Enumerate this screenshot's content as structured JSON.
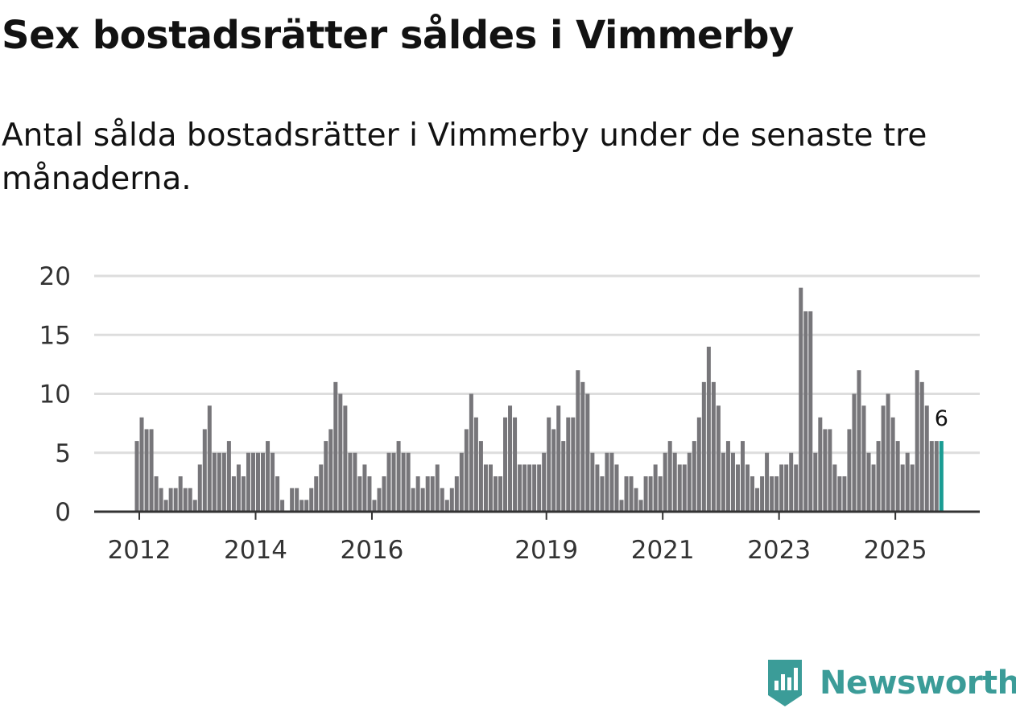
{
  "title": "Sex bostadsrätter såldes i Vimmerby",
  "subtitle": "Antal sålda bostadsrätter i Vimmerby under de senaste tre månaderna.",
  "brand": {
    "name": "Newsworthy",
    "icon": "newsworthy-logo-icon",
    "color": "#3b9c98"
  },
  "colors": {
    "bar": "#77767a",
    "highlight": "#1a9c93",
    "grid": "#dddddd",
    "axis": "#333333"
  },
  "chart_data": {
    "type": "bar",
    "title": "Sex bostadsrätter såldes i Vimmerby",
    "xlabel": "",
    "ylabel": "",
    "ylim": [
      0,
      20
    ],
    "yticks": [
      0,
      5,
      10,
      15,
      20
    ],
    "grid": true,
    "start": "2011-12",
    "frequency": "monthly",
    "xticks": [
      {
        "label": "2012",
        "index": 1
      },
      {
        "label": "2014",
        "index": 25
      },
      {
        "label": "2016",
        "index": 49
      },
      {
        "label": "2019",
        "index": 85
      },
      {
        "label": "2021",
        "index": 109
      },
      {
        "label": "2023",
        "index": 133
      },
      {
        "label": "2025",
        "index": 157
      }
    ],
    "values": [
      6,
      8,
      7,
      7,
      3,
      2,
      1,
      2,
      2,
      3,
      2,
      2,
      1,
      4,
      7,
      9,
      5,
      5,
      5,
      6,
      3,
      4,
      3,
      5,
      5,
      5,
      5,
      6,
      5,
      3,
      1,
      0,
      2,
      2,
      1,
      1,
      2,
      3,
      4,
      6,
      7,
      11,
      10,
      9,
      5,
      5,
      3,
      4,
      3,
      1,
      2,
      3,
      5,
      5,
      6,
      5,
      5,
      2,
      3,
      2,
      3,
      3,
      4,
      2,
      1,
      2,
      3,
      5,
      7,
      10,
      8,
      6,
      4,
      4,
      3,
      3,
      8,
      9,
      8,
      4,
      4,
      4,
      4,
      4,
      5,
      8,
      7,
      9,
      6,
      8,
      8,
      12,
      11,
      10,
      5,
      4,
      3,
      5,
      5,
      4,
      1,
      3,
      3,
      2,
      1,
      3,
      3,
      4,
      3,
      5,
      6,
      5,
      4,
      4,
      5,
      6,
      8,
      11,
      14,
      11,
      9,
      5,
      6,
      5,
      4,
      6,
      4,
      3,
      2,
      3,
      5,
      3,
      3,
      4,
      4,
      5,
      4,
      19,
      17,
      17,
      5,
      8,
      7,
      7,
      4,
      3,
      3,
      7,
      10,
      12,
      9,
      5,
      4,
      6,
      9,
      10,
      8,
      6,
      4,
      5,
      4,
      12,
      11,
      9,
      6,
      6,
      6
    ],
    "highlight": {
      "index": 166,
      "value": 6,
      "label": "6"
    }
  }
}
